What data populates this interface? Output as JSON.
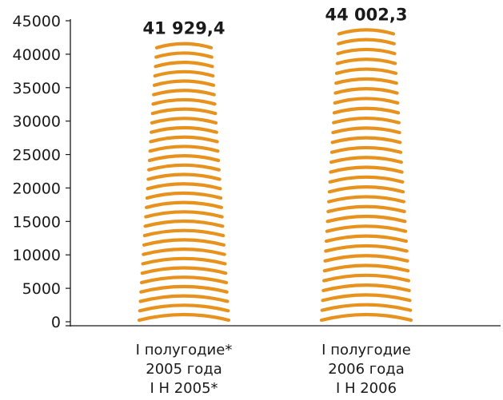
{
  "chart_data": {
    "type": "bar",
    "categories": [
      [
        "I полугодие*",
        "2005 года",
        "I H 2005*"
      ],
      [
        "I полугодие",
        "2006 года",
        "I H 2006"
      ]
    ],
    "values": [
      41929.4,
      44002.3
    ],
    "value_labels": [
      "41 929,4",
      "44 002,3"
    ],
    "y_ticks": [
      "0",
      "5000",
      "10000",
      "15000",
      "20000",
      "25000",
      "30000",
      "35000",
      "40000",
      "45000"
    ],
    "ylim": [
      0,
      45000
    ],
    "grid": false,
    "legend": "none",
    "bar_color": "#E8921E",
    "axis_color": "#1a1a1a"
  }
}
